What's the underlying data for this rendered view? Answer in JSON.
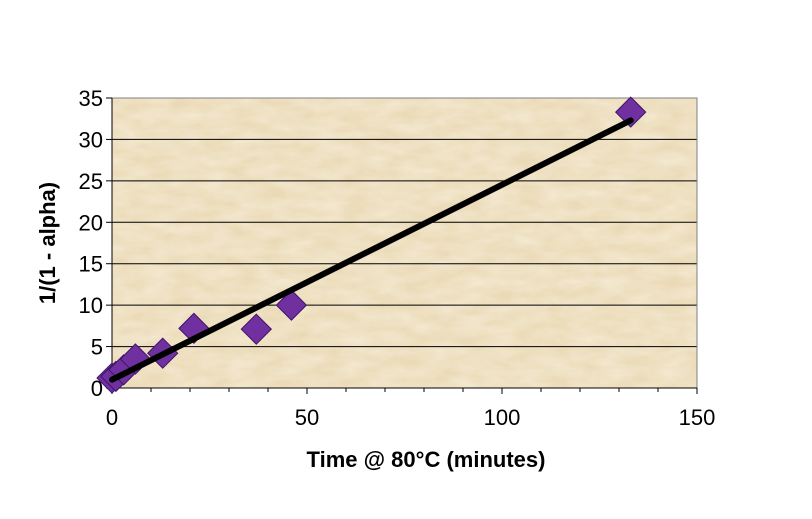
{
  "chart_data": {
    "type": "scatter",
    "title": "",
    "xlabel": "Time @ 80°C (minutes)",
    "ylabel": "1/(1 - alpha)",
    "xlim": [
      0,
      150
    ],
    "ylim": [
      0,
      35
    ],
    "x_ticks": [
      0,
      50,
      100,
      150
    ],
    "y_ticks": [
      0,
      5,
      10,
      15,
      20,
      25,
      30,
      35
    ],
    "grid": "horizontal",
    "legend": "none",
    "background": "parchment texture",
    "colors": {
      "marker": "#7030a0",
      "marker_edge": "#3f1466",
      "trendline": "#000000",
      "plot_bg": "#ead9b5"
    },
    "series": [
      {
        "marker": "diamond",
        "points": [
          {
            "x": 0,
            "y": 1.2
          },
          {
            "x": 1,
            "y": 1.4
          },
          {
            "x": 3,
            "y": 2.2
          },
          {
            "x": 6,
            "y": 3.5
          },
          {
            "x": 13,
            "y": 4.2
          },
          {
            "x": 21,
            "y": 7.2
          },
          {
            "x": 37,
            "y": 7.1
          },
          {
            "x": 46,
            "y": 10.0
          },
          {
            "x": 133,
            "y": 33.3
          }
        ]
      }
    ],
    "trendline": {
      "type": "linear",
      "from": [
        0,
        1.0
      ],
      "to": [
        133,
        32.3
      ]
    }
  }
}
